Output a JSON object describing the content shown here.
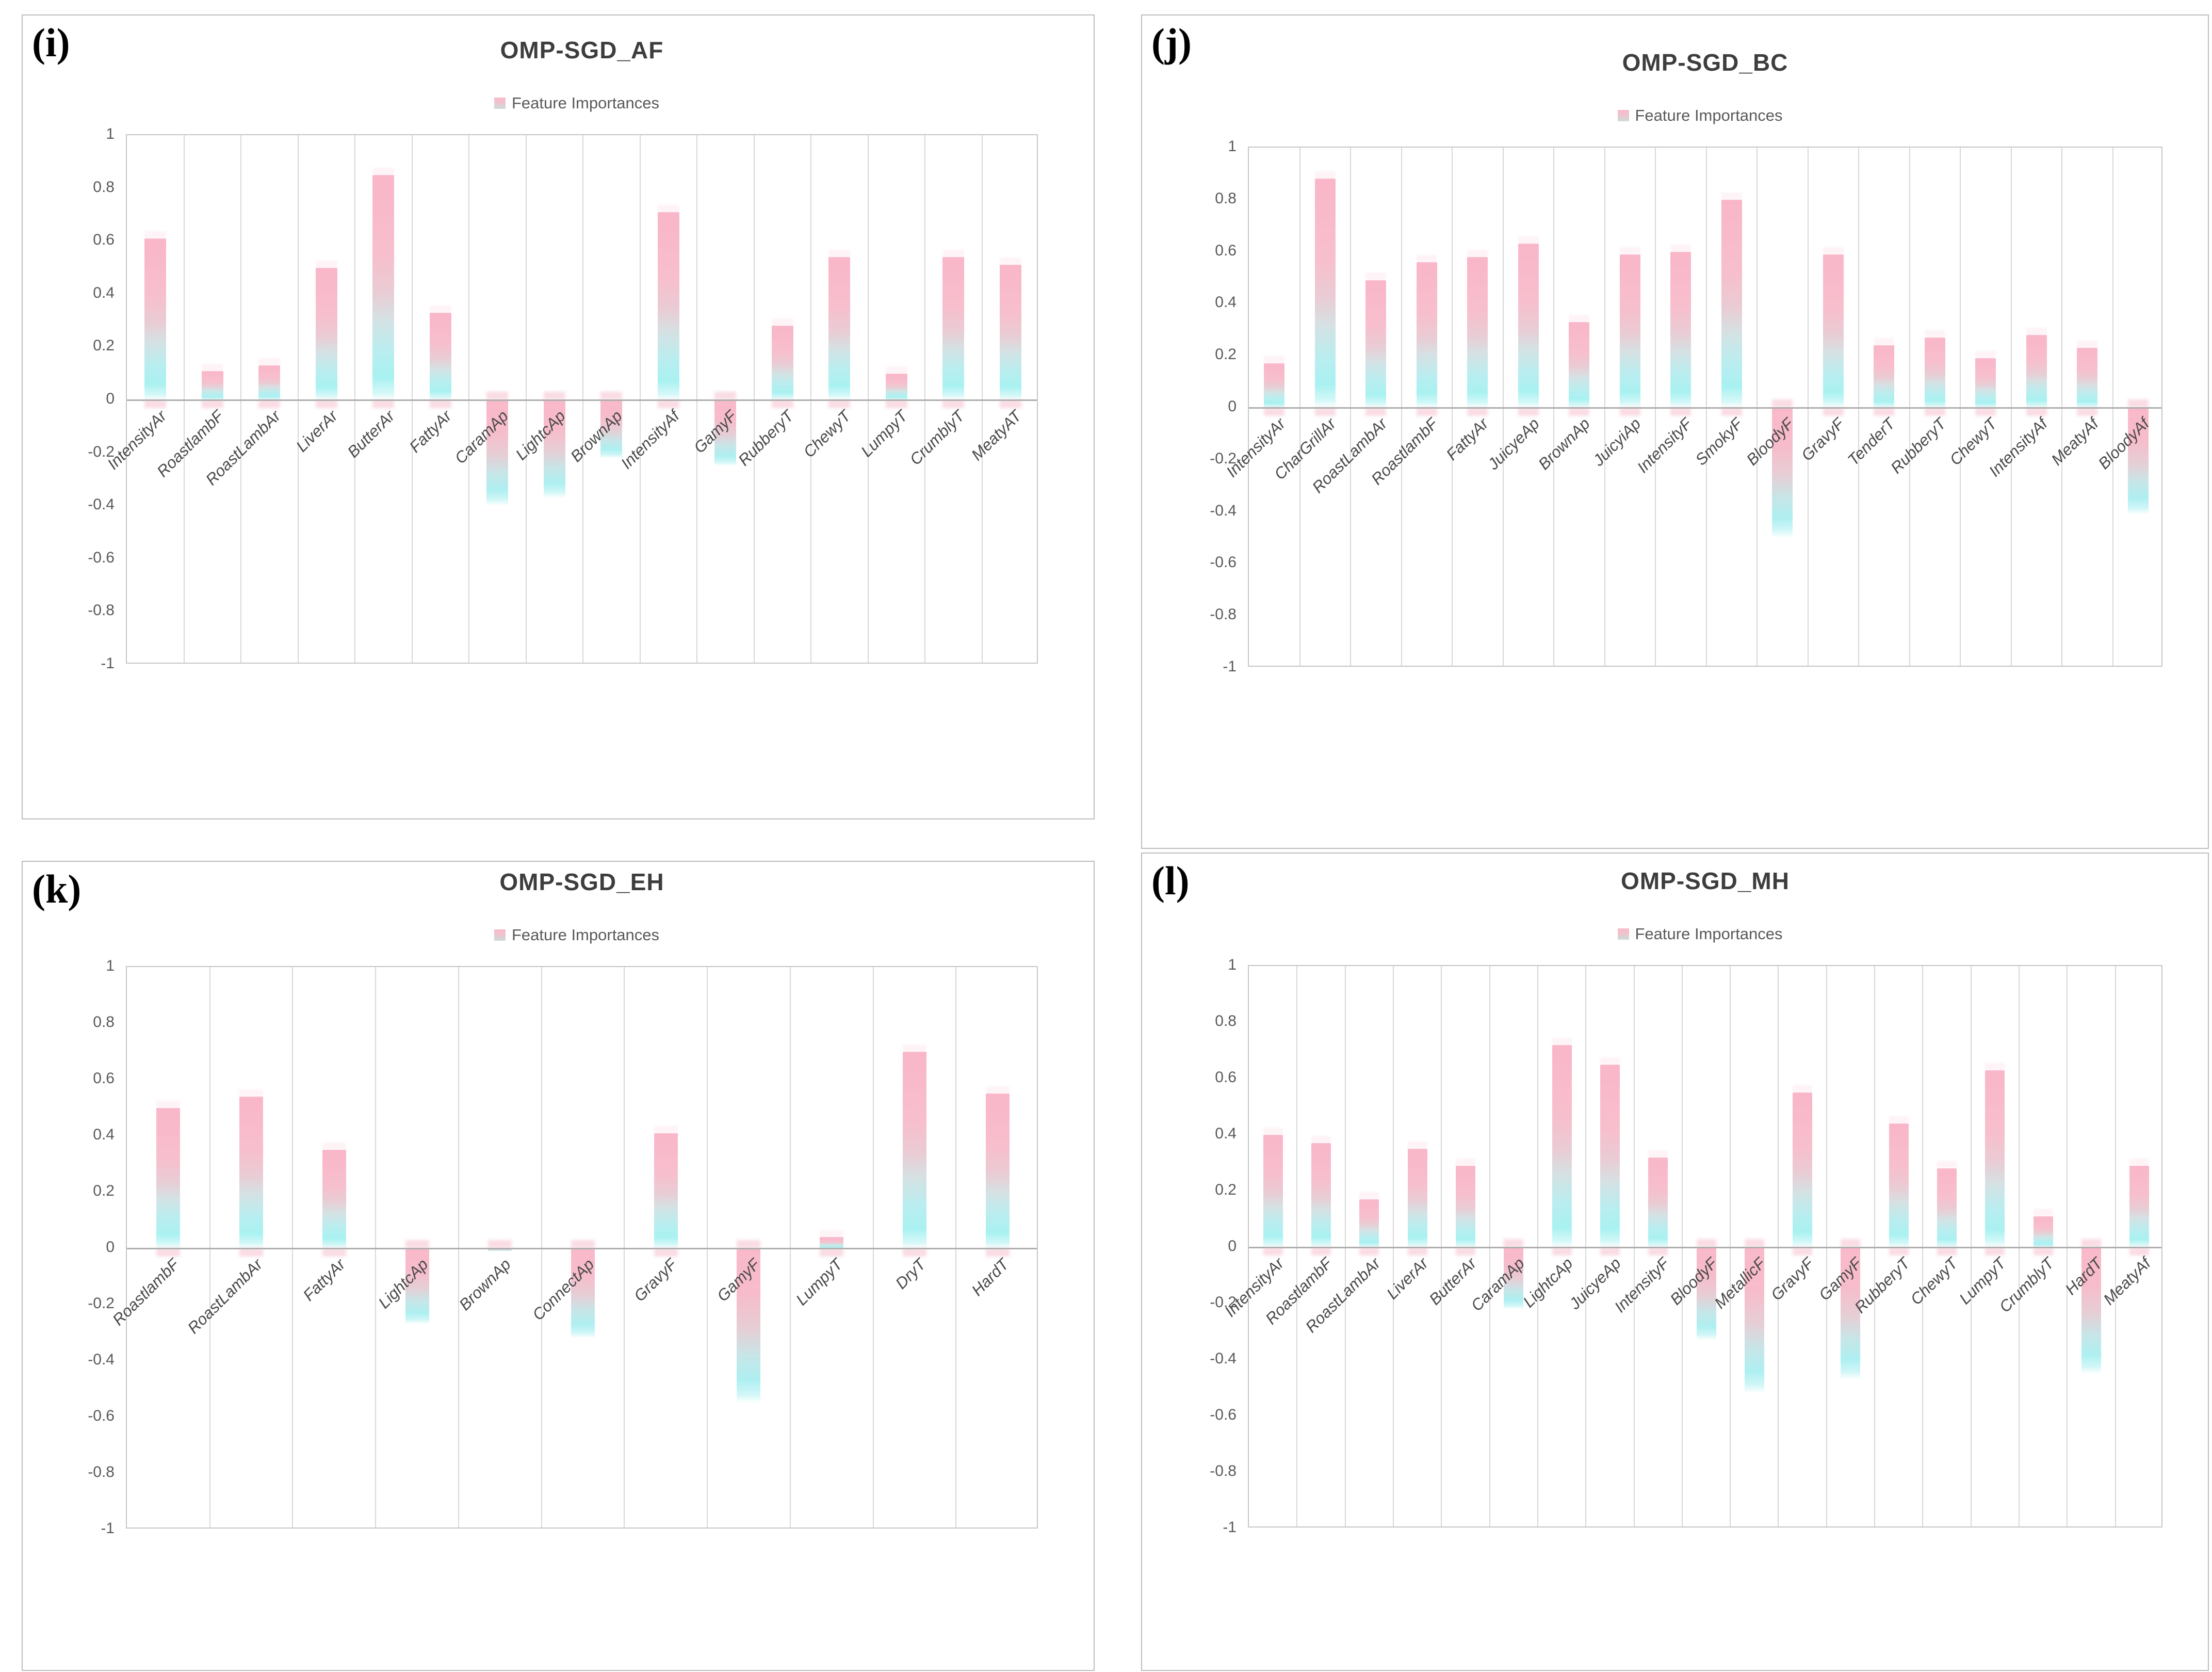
{
  "legend_label": "Feature Importances",
  "y_axis": {
    "min": -1,
    "max": 1,
    "step": 0.2,
    "ticks": [
      "1",
      "0.8",
      "0.6",
      "0.4",
      "0.2",
      "0",
      "-0.2",
      "-0.4",
      "-0.6",
      "-0.8",
      "-1"
    ]
  },
  "colors": {
    "bar_top_pink": "#f8b7c8",
    "bar_bottom_cyan": "#aeeff1",
    "gridline": "#d8d8d8",
    "plot_border": "#c6c6c6",
    "zero_line": "#aeaeae",
    "axis_text": "#595959",
    "title_text": "#3d3d3d",
    "panel_border": "#bdbdbd"
  },
  "chart_data": [
    {
      "type": "bar",
      "letter": "(i)",
      "title": "OMP-SGD_AF",
      "legend": "Feature Importances",
      "ylim": [
        -1,
        1
      ],
      "grid": "vertical-only",
      "legend_position": "top-center",
      "categories": [
        "IntensityAr",
        "RoastlambF",
        "RoastLambAr",
        "LiverAr",
        "ButterAr",
        "FattyAr",
        "CaramAp",
        "LightcAp",
        "BrownAp",
        "IntensityAf",
        "GamyF",
        "RubberyT",
        "ChewyT",
        "LumpyT",
        "CrumblyT",
        "MeatyAT"
      ],
      "values": [
        0.61,
        0.11,
        0.13,
        0.5,
        0.85,
        0.33,
        -0.4,
        -0.37,
        -0.22,
        0.71,
        -0.25,
        0.28,
        0.54,
        0.1,
        0.54,
        0.51
      ]
    },
    {
      "type": "bar",
      "letter": "(j)",
      "title": "OMP-SGD_BC",
      "legend": "Feature Importances",
      "ylim": [
        -1,
        1
      ],
      "grid": "vertical-only",
      "legend_position": "top-center",
      "categories": [
        "IntensityAr",
        "CharGrillAr",
        "RoastLambAr",
        "RoastlambF",
        "FattyAr",
        "JuicyeAp",
        "BrownAp",
        "JuicyiAp",
        "IntensityF",
        "SmokyF",
        "BloodyF",
        "GravyF",
        "TenderT",
        "RubberyT",
        "ChewyT",
        "IntensityAf",
        "MeatyAf",
        "BloodyAf"
      ],
      "values": [
        0.17,
        0.88,
        0.49,
        0.56,
        0.58,
        0.63,
        0.33,
        0.59,
        0.6,
        0.8,
        -0.5,
        0.59,
        0.24,
        0.27,
        0.19,
        0.28,
        0.23,
        -0.41
      ]
    },
    {
      "type": "bar",
      "letter": "(k)",
      "title": "OMP-SGD_EH",
      "legend": "Feature Importances",
      "ylim": [
        -1,
        1
      ],
      "grid": "vertical-only",
      "legend_position": "top-center",
      "categories": [
        "RoastlambF",
        "RoastLambAr",
        "FattyAr",
        "LightcAp",
        "BrownAp",
        "ConnectAp",
        "GravyF",
        "GamyF",
        "LumpyT",
        "DryT",
        "HardT"
      ],
      "values": [
        0.5,
        0.54,
        0.35,
        -0.27,
        -0.01,
        -0.32,
        0.41,
        -0.55,
        0.04,
        0.7,
        0.55
      ]
    },
    {
      "type": "bar",
      "letter": "(l)",
      "title": "OMP-SGD_MH",
      "legend": "Feature Importances",
      "ylim": [
        -1,
        1
      ],
      "grid": "vertical-only",
      "legend_position": "top-center",
      "categories": [
        "IntensityAr",
        "RoastlambF",
        "RoastLambAr",
        "LiverAr",
        "ButterAr",
        "CaramAp",
        "LightcAp",
        "JuicyeAp",
        "IntensityF",
        "BloodyF",
        "MetallicF",
        "GravyF",
        "GamyF",
        "RubberyT",
        "ChewyT",
        "LumpyT",
        "CrumblyT",
        "HardT",
        "MeatyAf"
      ],
      "values": [
        0.4,
        0.37,
        0.17,
        0.35,
        0.29,
        -0.22,
        0.72,
        0.65,
        0.32,
        -0.33,
        -0.52,
        0.55,
        -0.47,
        0.44,
        0.28,
        0.63,
        0.11,
        -0.45,
        0.29
      ]
    }
  ]
}
